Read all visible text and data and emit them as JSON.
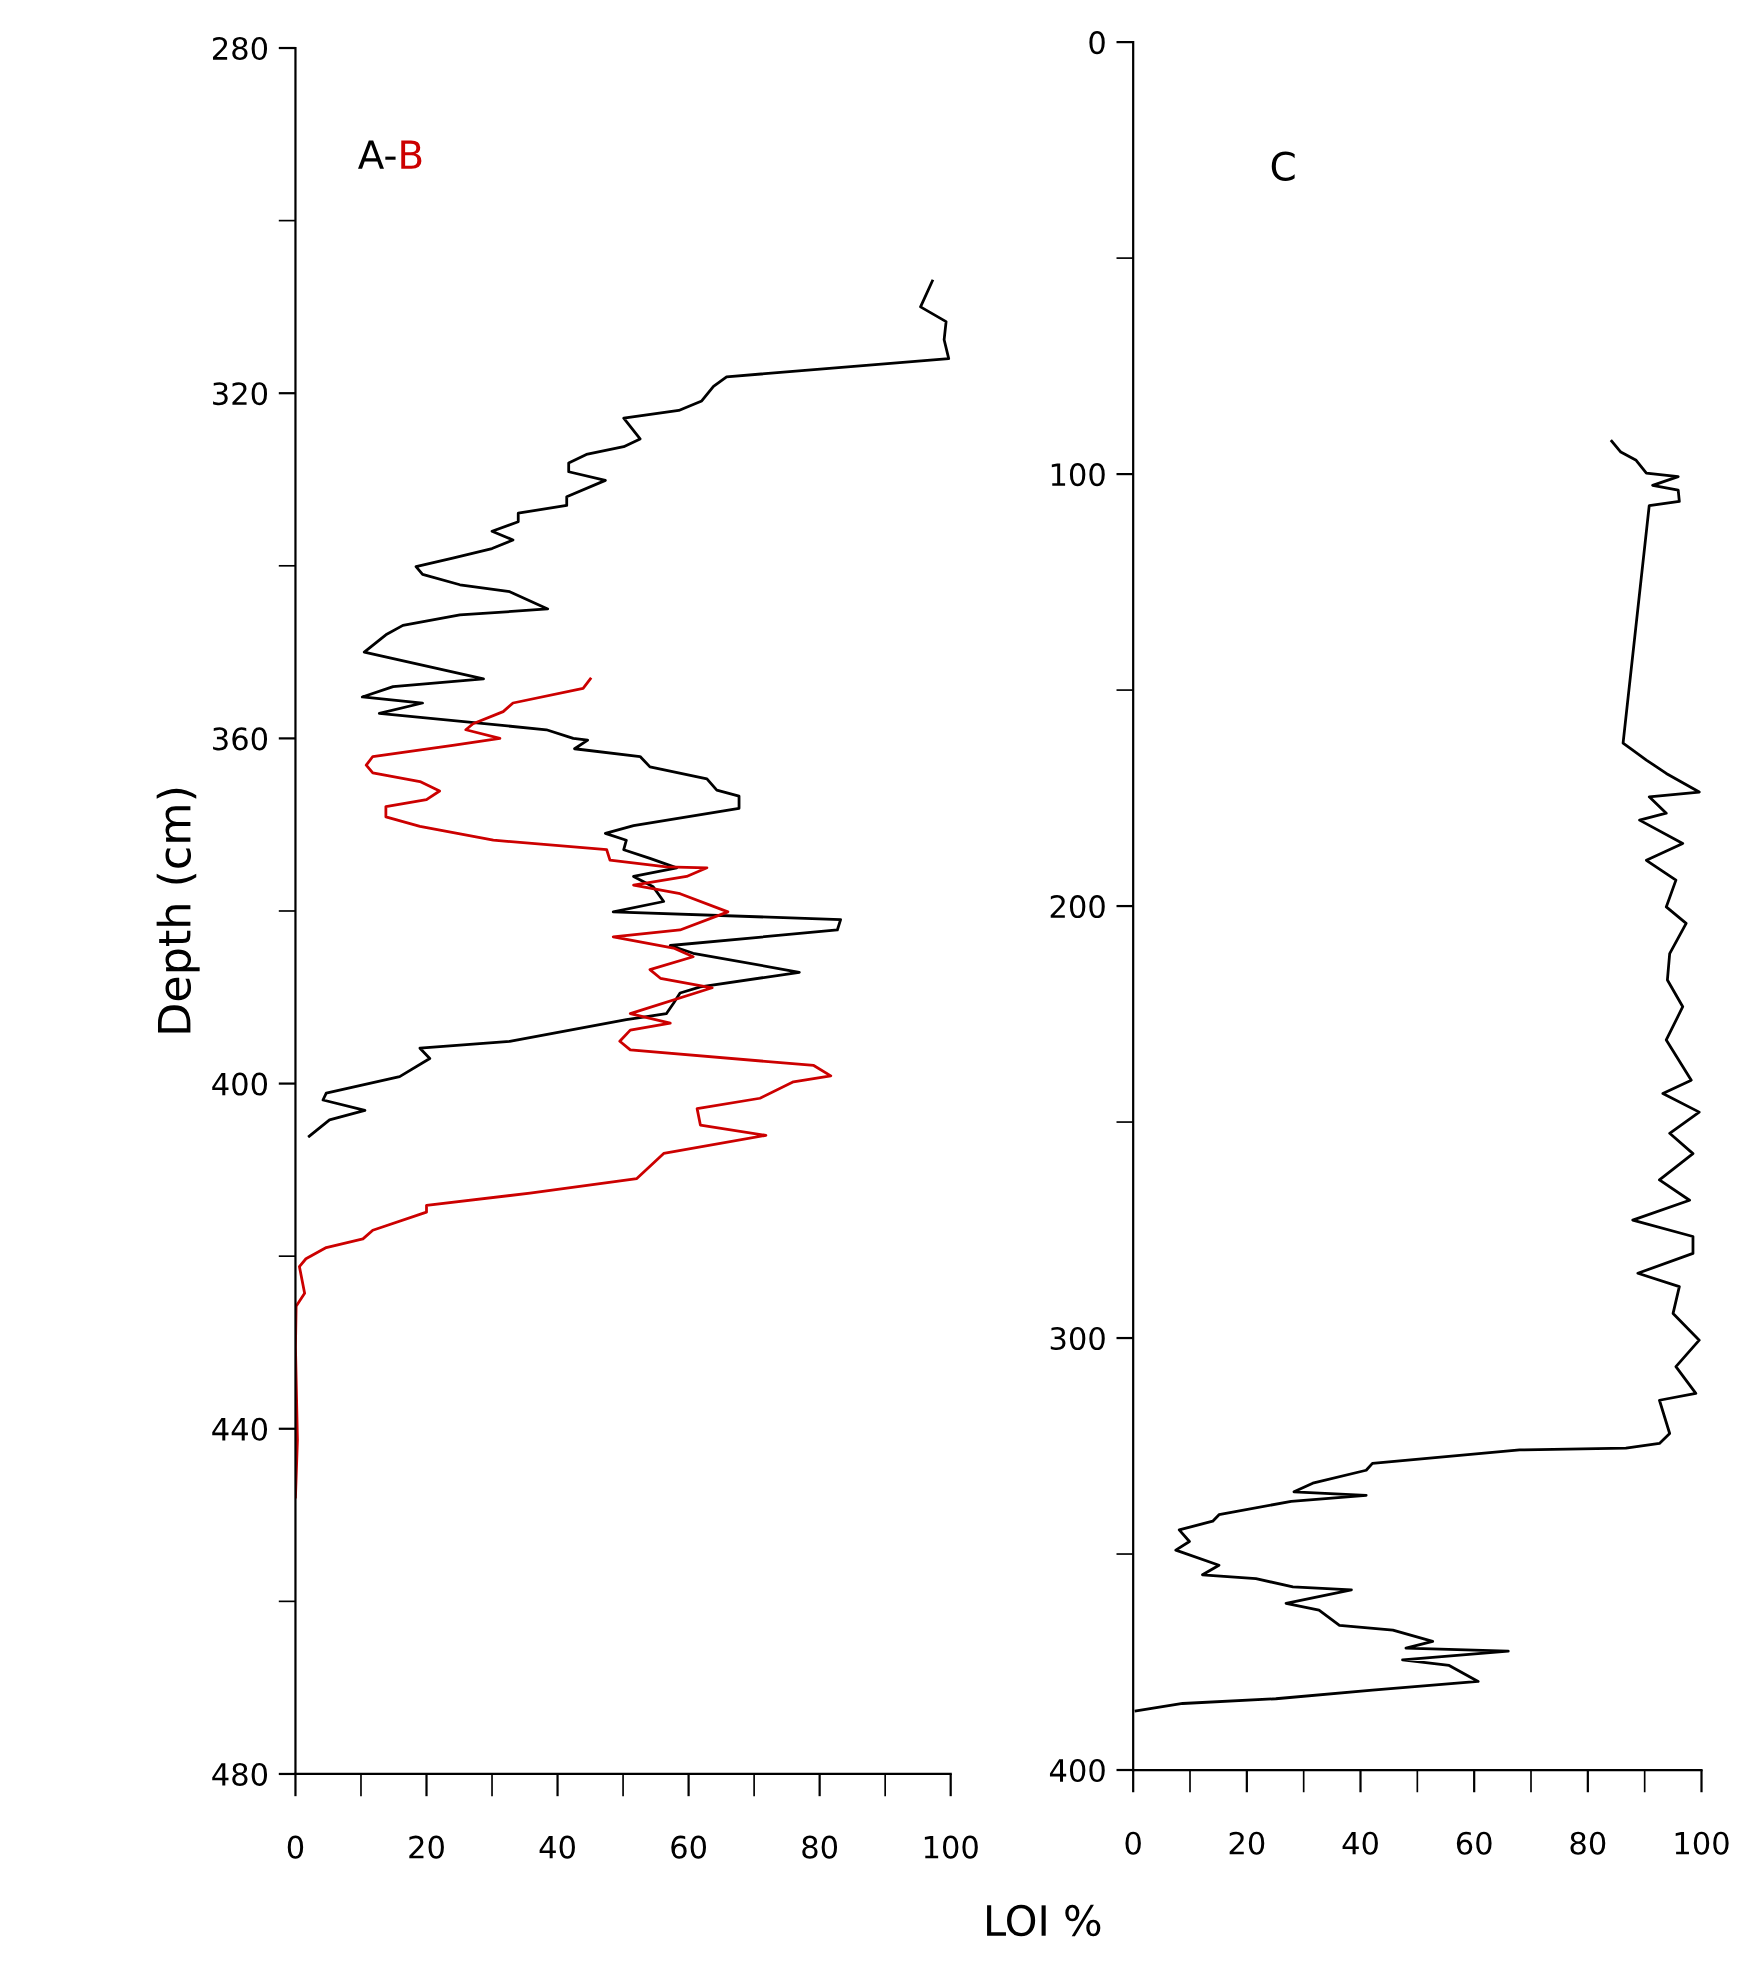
{
  "chart_data": [
    {
      "type": "line",
      "ylabel": "Depth (cm)",
      "xlabel": "LOI %",
      "xlim": [
        0,
        100
      ],
      "ylim": [
        480,
        280
      ],
      "grid": false,
      "legend": false,
      "marker": "none",
      "line_style": "solid",
      "xticks": [
        0,
        {
          "value": 10,
          "label": null
        },
        20,
        {
          "value": 30,
          "label": null
        },
        40,
        {
          "value": 50,
          "label": null
        },
        60,
        {
          "value": 70,
          "label": null
        },
        80,
        {
          "value": 90,
          "label": null
        },
        100
      ],
      "yticks": [
        280,
        {
          "value": 300,
          "label": null
        },
        320,
        {
          "value": 340,
          "label": null
        },
        360,
        {
          "value": 380,
          "label": null
        },
        400,
        {
          "value": 420,
          "label": null
        },
        440,
        {
          "value": 460,
          "label": null
        },
        480
      ],
      "series": [
        {
          "name": "A-",
          "color": "#000000",
          "x": [
            97.2,
            95.4,
            99.3,
            99.0,
            99.7,
            65.8,
            63.8,
            62.0,
            58.5,
            50.1,
            52.6,
            50.1,
            44.4,
            41.7,
            41.7,
            47.3,
            41.4,
            41.4,
            34.0,
            34.0,
            30.0,
            33.2,
            30.0,
            24.0,
            18.4,
            19.4,
            25.1,
            32.7,
            38.5,
            25.1,
            16.4,
            13.8,
            10.5,
            28.7,
            14.9,
            10.2,
            19.4,
            12.8,
            38.3,
            42.4,
            44.6,
            42.6,
            52.6,
            54.1,
            62.8,
            64.3,
            67.7,
            67.7,
            51.6,
            47.3,
            50.5,
            50.1,
            54.1,
            58.2,
            51.6,
            54.6,
            56.2,
            48.5,
            83.2,
            82.7,
            57.2,
            60.7,
            76.9,
            61.8,
            58.7,
            57.7,
            56.6,
            50.5,
            32.7,
            19.0,
            20.5,
            15.9,
            4.7,
            4.2,
            10.6,
            5.2,
            2.1
          ],
          "values": [
            307.0,
            310.0,
            311.7,
            313.8,
            316.0,
            318.1,
            319.2,
            320.9,
            322.0,
            322.9,
            325.3,
            326.2,
            327.1,
            328.1,
            329.1,
            330.1,
            332.0,
            333.0,
            333.9,
            334.9,
            336.0,
            337.0,
            338.0,
            339.1,
            340.1,
            341.0,
            342.2,
            343.0,
            345.0,
            345.7,
            346.9,
            348.0,
            350.0,
            353.1,
            354.0,
            355.2,
            355.9,
            357.1,
            359.0,
            360.0,
            360.2,
            361.2,
            362.1,
            363.3,
            364.7,
            366.0,
            366.7,
            368.1,
            370.1,
            371.0,
            371.8,
            372.9,
            373.9,
            375.0,
            376.0,
            377.2,
            378.9,
            380.1,
            381.0,
            382.2,
            384.0,
            384.9,
            387.1,
            388.8,
            389.5,
            390.7,
            391.9,
            392.6,
            395.1,
            395.9,
            397.1,
            399.2,
            401.1,
            401.9,
            403.1,
            404.2,
            406.1
          ]
        },
        {
          "name": "B",
          "color": "#cc0000",
          "x": [
            45.0,
            43.9,
            33.2,
            31.7,
            27.1,
            26.0,
            31.2,
            24.0,
            11.8,
            10.8,
            11.8,
            19.0,
            22.0,
            20.0,
            13.8,
            13.8,
            19.0,
            30.2,
            47.5,
            48.0,
            56.6,
            62.8,
            59.7,
            51.6,
            58.7,
            66.0,
            58.7,
            48.5,
            57.7,
            60.7,
            54.1,
            55.7,
            63.6,
            51.1,
            57.2,
            51.1,
            49.5,
            51.1,
            79.1,
            81.7,
            76.0,
            70.9,
            61.3,
            61.8,
            71.8,
            56.2,
            52.1,
            35.8,
            20.0,
            20.0,
            11.8,
            10.3,
            4.7,
            1.6,
            0.6,
            1.4,
            0.1,
            0,
            0.3,
            0
          ],
          "values": [
            353.1,
            354.2,
            355.9,
            356.9,
            358.3,
            359.0,
            360.0,
            360.8,
            362.1,
            363.1,
            364.0,
            365.0,
            366.1,
            367.1,
            367.9,
            369.1,
            370.2,
            371.8,
            372.9,
            374.1,
            374.9,
            375.0,
            376.0,
            377.0,
            378.0,
            380.1,
            382.2,
            383.0,
            384.3,
            385.3,
            386.8,
            387.8,
            388.9,
            391.9,
            393.0,
            393.8,
            395.1,
            396.1,
            397.9,
            399.1,
            399.8,
            401.7,
            402.9,
            404.8,
            406.0,
            408.1,
            411.0,
            412.7,
            414.1,
            414.9,
            417.0,
            418.0,
            419.0,
            420.3,
            421.2,
            424.3,
            425.8,
            430.5,
            441.3,
            447.9
          ]
        }
      ]
    },
    {
      "type": "line",
      "xlim": [
        0,
        100
      ],
      "ylim": [
        400,
        0
      ],
      "grid": false,
      "legend": false,
      "marker": "none",
      "line_style": "solid",
      "xticks": [
        0,
        {
          "value": 10,
          "label": null
        },
        20,
        {
          "value": 30,
          "label": null
        },
        40,
        {
          "value": 50,
          "label": null
        },
        60,
        {
          "value": 70,
          "label": null
        },
        80,
        {
          "value": 90,
          "label": null
        },
        100
      ],
      "yticks": [
        0,
        {
          "value": 50,
          "label": null
        },
        100,
        {
          "value": 150,
          "label": null
        },
        200,
        {
          "value": 250,
          "label": null
        },
        300,
        {
          "value": 350,
          "label": null
        },
        400
      ],
      "series": [
        {
          "name": "C",
          "color": "#000000",
          "x": [
            84.2,
            85.8,
            88.5,
            90.3,
            95.9,
            91.4,
            95.9,
            96.1,
            90.8,
            86.2,
            87.9,
            90.3,
            93.8,
            99.6,
            90.8,
            93.8,
            89.1,
            96.7,
            90.3,
            95.5,
            93.8,
            97.3,
            94.4,
            94.0,
            96.7,
            93.8,
            98.2,
            93.2,
            99.6,
            94.4,
            98.5,
            92.6,
            97.9,
            87.9,
            98.5,
            98.5,
            88.8,
            96.1,
            95.0,
            99.6,
            95.5,
            99.0,
            92.6,
            94.4,
            92.6,
            86.7,
            68.0,
            42.1,
            41.0,
            31.6,
            28.3,
            41.0,
            27.8,
            15.1,
            14.0,
            8.1,
            9.9,
            7.5,
            15.1,
            12.2,
            21.6,
            28.1,
            38.4,
            26.9,
            32.7,
            36.3,
            45.7,
            52.7,
            48.0,
            66.0,
            47.4,
            55.6,
            60.7,
            42.1,
            25.1,
            8.7,
            0.5
          ],
          "values": [
            92.4,
            94.9,
            96.8,
            99.8,
            100.6,
            102.6,
            103.7,
            106.3,
            107.3,
            162.3,
            163.9,
            166.2,
            169.3,
            173.6,
            174.7,
            178.5,
            180.1,
            185.5,
            189.4,
            194.0,
            200.2,
            204.0,
            211.0,
            217.1,
            223.3,
            231.0,
            240.3,
            243.4,
            247.7,
            252.6,
            257.3,
            263.4,
            268.1,
            272.7,
            276.5,
            280.4,
            285.0,
            288.1,
            294.3,
            300.5,
            306.6,
            312.8,
            314.4,
            322.1,
            324.4,
            325.5,
            325.9,
            329.0,
            330.6,
            333.6,
            335.6,
            336.4,
            337.8,
            340.9,
            342.4,
            344.4,
            347.1,
            349.1,
            352.6,
            354.8,
            355.7,
            357.6,
            358.3,
            361.4,
            363.0,
            366.5,
            367.6,
            370.2,
            371.8,
            372.5,
            374.5,
            375.8,
            379.5,
            381.5,
            383.5,
            384.6,
            386.3
          ]
        }
      ]
    }
  ]
}
